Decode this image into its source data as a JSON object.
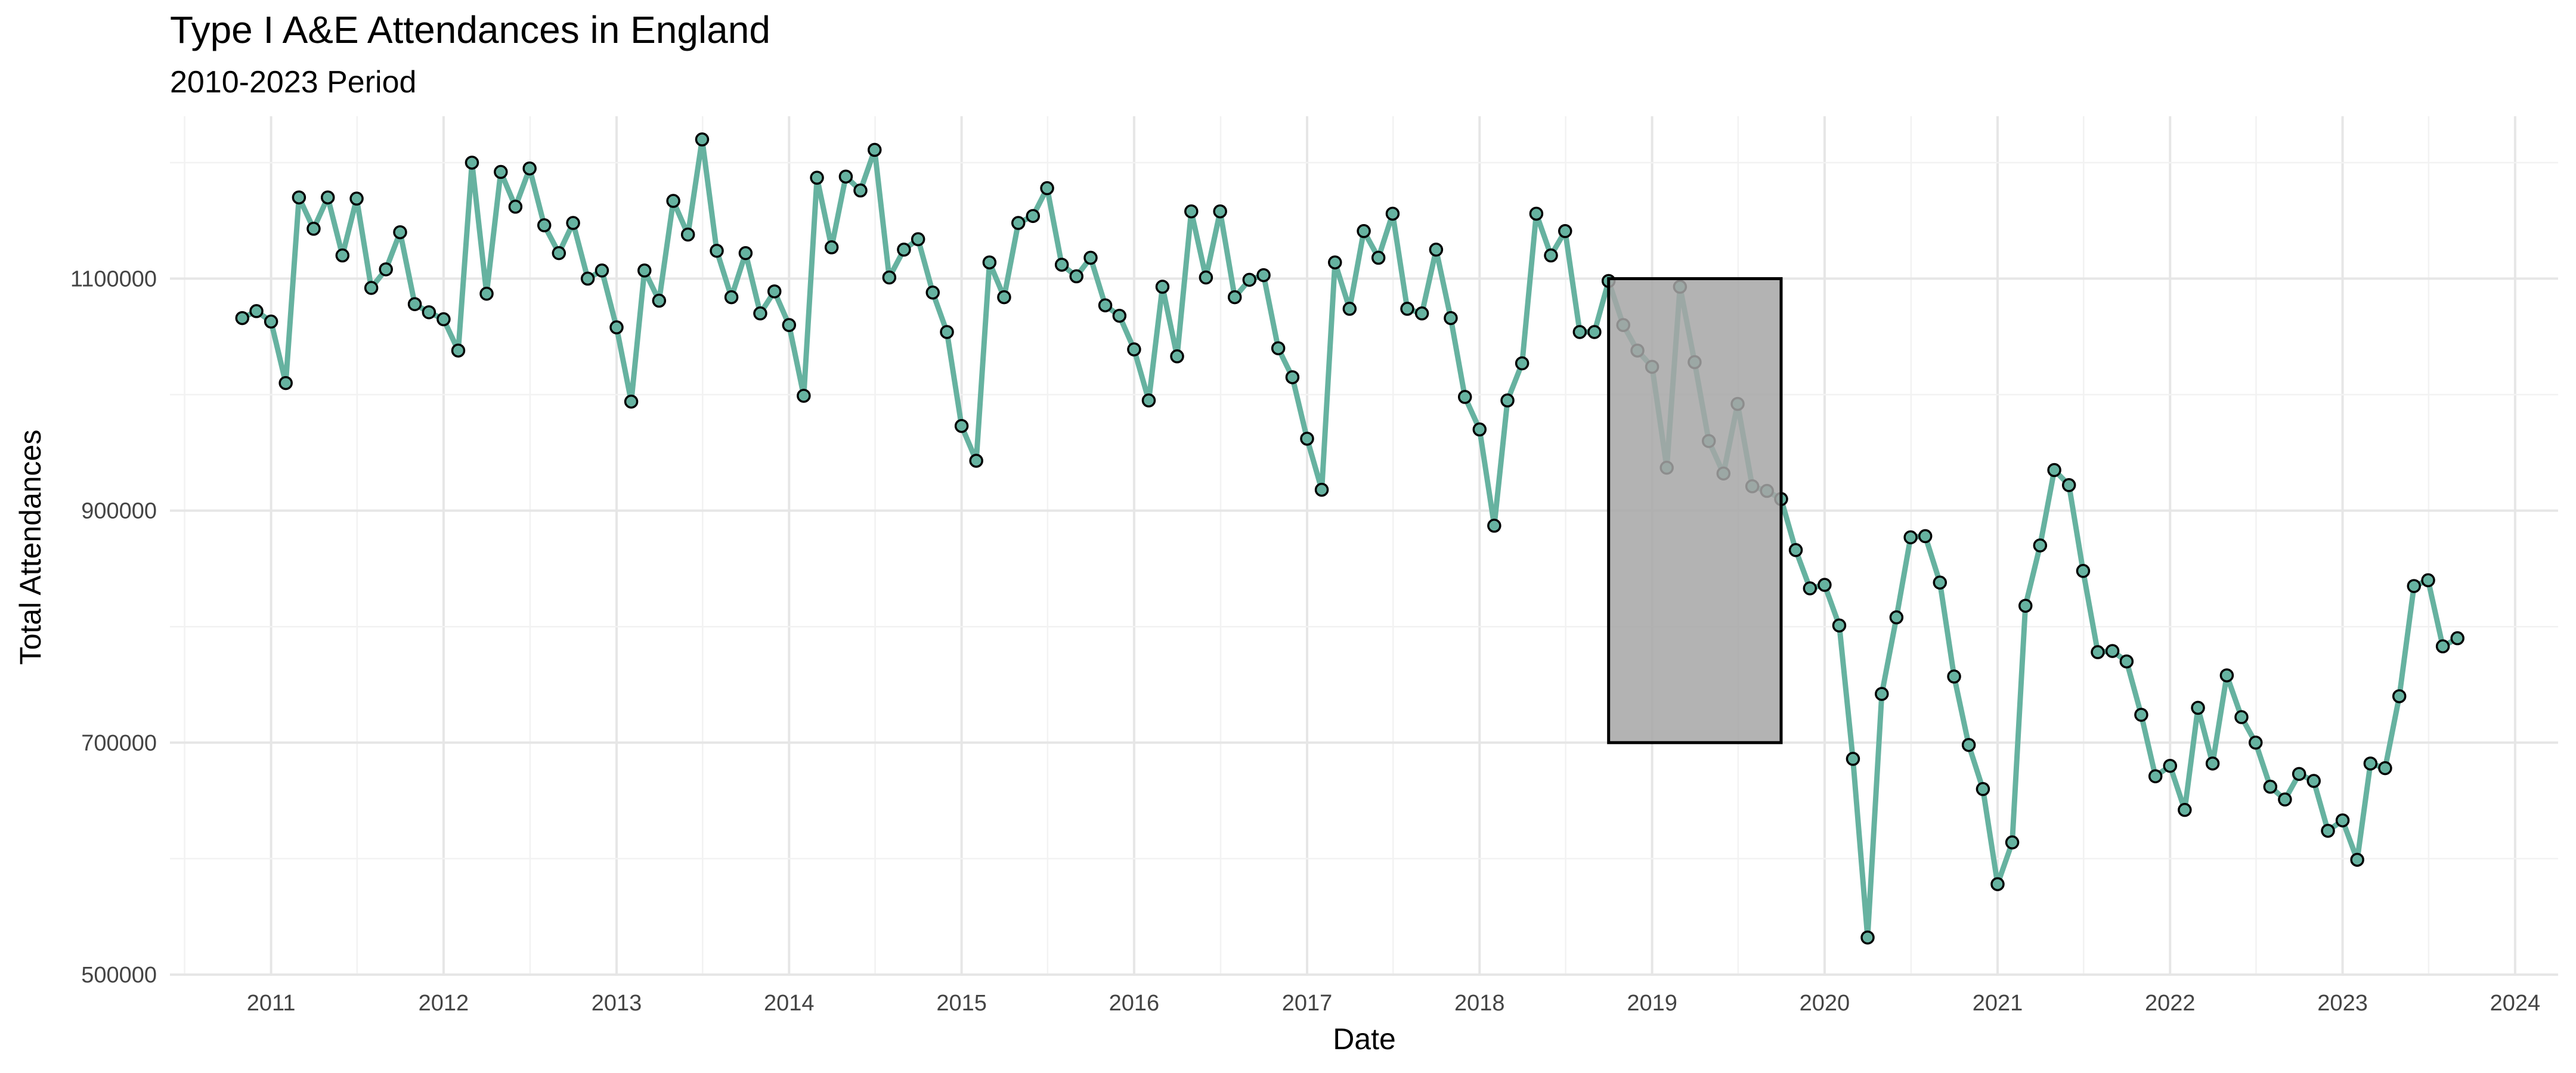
{
  "chart_data": {
    "type": "line",
    "title": "Type I A&E Attendances in England",
    "subtitle": "2010-2023 Period",
    "xlabel": "Date",
    "ylabel": "Total Attendances",
    "xlim": [
      "2010-06-01",
      "2024-04-01"
    ],
    "ylim": [
      500000,
      1240000
    ],
    "x_ticks": [
      "2011",
      "2012",
      "2013",
      "2014",
      "2015",
      "2016",
      "2017",
      "2018",
      "2019",
      "2020",
      "2021",
      "2022",
      "2023",
      "2024"
    ],
    "y_ticks": [
      500000,
      700000,
      900000,
      1100000
    ],
    "grid": true,
    "legend": "none",
    "line_color": "#66b2a0",
    "point_fill": "#66b2a0",
    "point_stroke": "#000000",
    "highlight": {
      "x_start": "2018-10-01",
      "x_end": "2019-10-01",
      "y_min": 700000,
      "y_max": 1100000,
      "fill": "#a6a6a6",
      "stroke": "#000000"
    },
    "series": [
      {
        "x": [
          "2010-11",
          "2010-12",
          "2011-01",
          "2011-02",
          "2011-03",
          "2011-04",
          "2011-05",
          "2011-06",
          "2011-07",
          "2011-08",
          "2011-09",
          "2011-10",
          "2011-11",
          "2011-12",
          "2012-01",
          "2012-02",
          "2012-03",
          "2012-04",
          "2012-05",
          "2012-06",
          "2012-07",
          "2012-08",
          "2012-09",
          "2012-10",
          "2012-11",
          "2012-12",
          "2013-01",
          "2013-02",
          "2013-03",
          "2013-04",
          "2013-05",
          "2013-06",
          "2013-07",
          "2013-08",
          "2013-09",
          "2013-10",
          "2013-11",
          "2013-12",
          "2014-01",
          "2014-02",
          "2014-03",
          "2014-04",
          "2014-05",
          "2014-06",
          "2014-07",
          "2014-08",
          "2014-09",
          "2014-10",
          "2014-11",
          "2014-12",
          "2015-01",
          "2015-02",
          "2015-03",
          "2015-04",
          "2015-05",
          "2015-06",
          "2015-07",
          "2015-08",
          "2015-09",
          "2015-10",
          "2015-11",
          "2015-12",
          "2016-01",
          "2016-02",
          "2016-03",
          "2016-04",
          "2016-05",
          "2016-06",
          "2016-07",
          "2016-08",
          "2016-09",
          "2016-10",
          "2016-11",
          "2016-12",
          "2017-01",
          "2017-02",
          "2017-03",
          "2017-04",
          "2017-05",
          "2017-06",
          "2017-07",
          "2017-08",
          "2017-09",
          "2017-10",
          "2017-11",
          "2017-12",
          "2018-01",
          "2018-02",
          "2018-03",
          "2018-04",
          "2018-05",
          "2018-06",
          "2018-07",
          "2018-08",
          "2018-09",
          "2018-10",
          "2018-11",
          "2018-12",
          "2019-01",
          "2019-02",
          "2019-03",
          "2019-04",
          "2019-05",
          "2019-06",
          "2019-07",
          "2019-08",
          "2019-09",
          "2019-10",
          "2019-11",
          "2019-12",
          "2020-01",
          "2020-02",
          "2020-03",
          "2020-04",
          "2020-05",
          "2020-06",
          "2020-07",
          "2020-08",
          "2020-09",
          "2020-10",
          "2020-11",
          "2020-12",
          "2021-01",
          "2021-02",
          "2021-03",
          "2021-04",
          "2021-05",
          "2021-06",
          "2021-07",
          "2021-08",
          "2021-09",
          "2021-10",
          "2021-11",
          "2021-12",
          "2022-01",
          "2022-02",
          "2022-03",
          "2022-04",
          "2022-05",
          "2022-06",
          "2022-07",
          "2022-08",
          "2022-09",
          "2022-10",
          "2022-11",
          "2022-12",
          "2023-01",
          "2023-02",
          "2023-03",
          "2023-04",
          "2023-05",
          "2023-06",
          "2023-07",
          "2023-08",
          "2023-09"
        ],
        "values": [
          1066000,
          1072000,
          1063000,
          1010000,
          1170000,
          1143000,
          1170000,
          1120000,
          1169000,
          1092000,
          1108000,
          1140000,
          1078000,
          1071000,
          1065000,
          1038000,
          1200000,
          1087000,
          1192000,
          1162000,
          1195000,
          1146000,
          1122000,
          1148000,
          1100000,
          1107000,
          1058000,
          994000,
          1107000,
          1081000,
          1167000,
          1138000,
          1220000,
          1124000,
          1084000,
          1122000,
          1070000,
          1089000,
          1060000,
          999000,
          1187000,
          1127000,
          1188000,
          1176000,
          1211000,
          1101000,
          1125000,
          1134000,
          1088000,
          1054000,
          973000,
          943000,
          1114000,
          1084000,
          1148000,
          1154000,
          1178000,
          1112000,
          1102000,
          1118000,
          1077000,
          1068000,
          1039000,
          995000,
          1093000,
          1033000,
          1158000,
          1101000,
          1158000,
          1084000,
          1099000,
          1103000,
          1040000,
          1015000,
          962000,
          918000,
          1114000,
          1074000,
          1141000,
          1118000,
          1156000,
          1074000,
          1070000,
          1125000,
          1066000,
          998000,
          970000,
          887000,
          995000,
          1027000,
          1156000,
          1120000,
          1141000,
          1054000,
          1054000,
          1098000,
          1060000,
          1038000,
          1024000,
          937000,
          1093000,
          1028000,
          960000,
          932000,
          992000,
          921000,
          917000,
          910000,
          866000,
          833000,
          836000,
          801000,
          686000,
          532000,
          742000,
          808000,
          877000,
          878000,
          838000,
          757000,
          698000,
          660000,
          578000,
          614000,
          818000,
          870000,
          935000,
          922000,
          848000,
          778000,
          779000,
          770000,
          724000,
          671000,
          680000,
          642000,
          730000,
          682000,
          758000,
          722000,
          700000,
          662000,
          651000,
          673000,
          667000,
          624000,
          633000,
          599000,
          682000,
          678000,
          740000,
          835000,
          840000,
          783000,
          790000
        ]
      }
    ]
  }
}
